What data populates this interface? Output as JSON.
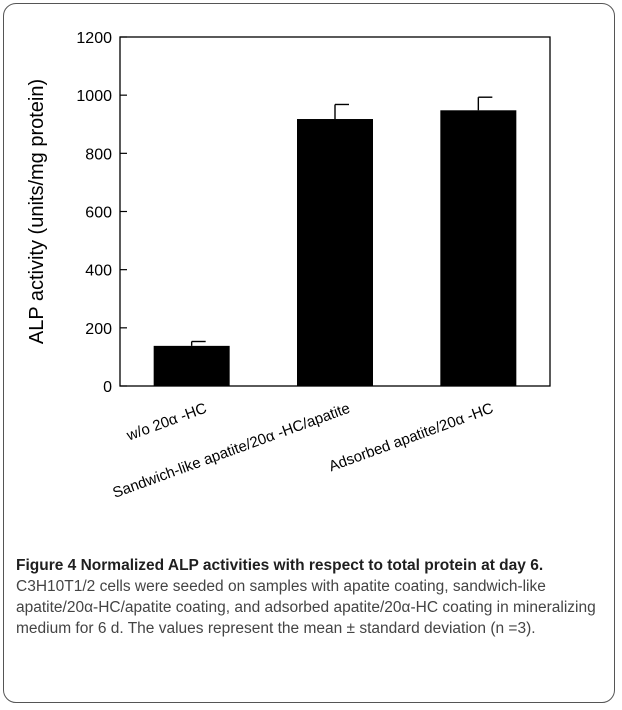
{
  "chart_data": {
    "type": "bar",
    "ylabel": "ALP activity (units/mg protein)",
    "xlabel": "",
    "ylim": [
      0,
      1200
    ],
    "yticks": [
      0,
      200,
      400,
      600,
      800,
      1000,
      1200
    ],
    "categories": [
      "w/o 20α -HC",
      "Sandwich-like apatite/20α -HC/apatite",
      "Adsorbed apatite/20α -HC"
    ],
    "values": [
      138,
      918,
      948
    ],
    "errors": [
      15,
      50,
      45
    ],
    "bar_color": "#000000",
    "grid": false
  },
  "caption": {
    "title": "Figure 4 Normalized ALP activities with respect to total protein at day 6.",
    "body": " C3H10T1/2 cells were seeded on samples with apatite coating, sandwich-like apatite/20α-HC/apatite coating, and adsorbed apatite/20α-HC coating in mineralizing medium for 6 d. The values represent the mean ± standard deviation (n =3)."
  }
}
